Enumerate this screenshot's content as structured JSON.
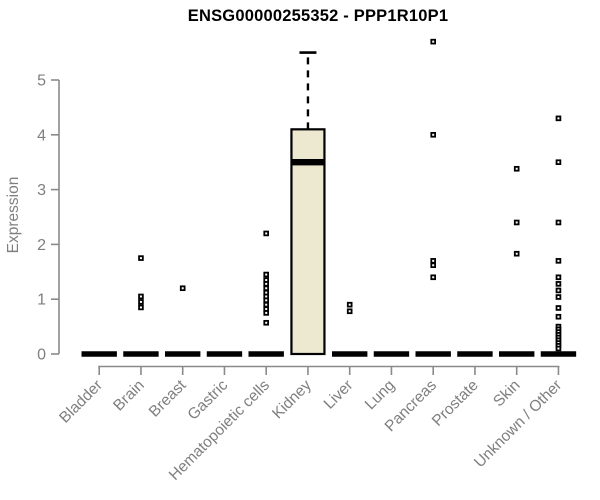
{
  "title": "ENSG00000255352 - PPP1R10P1",
  "chart_data": {
    "type": "boxplot",
    "title": "ENSG00000255352 - PPP1R10P1",
    "xlabel": "",
    "ylabel": "Expression",
    "ylim": [
      0,
      5.8
    ],
    "yticks": [
      0,
      1,
      2,
      3,
      4,
      5
    ],
    "grid": false,
    "legend": false,
    "categories": [
      "Bladder",
      "Brain",
      "Breast",
      "Gastric",
      "Hematopoietic cells",
      "Kidney",
      "Liver",
      "Lung",
      "Pancreas",
      "Prostate",
      "Skin",
      "Unknown / Other"
    ],
    "groups": [
      {
        "label": "Bladder",
        "median": 0,
        "points": []
      },
      {
        "label": "Brain",
        "median": 0,
        "points": [
          1.75,
          1.05,
          0.95,
          0.85
        ]
      },
      {
        "label": "Breast",
        "median": 0,
        "points": [
          1.2
        ]
      },
      {
        "label": "Gastric",
        "median": 0,
        "points": []
      },
      {
        "label": "Hematopoietic cells",
        "median": 0,
        "points": [
          2.2,
          1.45,
          1.35,
          1.28,
          1.2,
          1.12,
          1.05,
          0.98,
          0.9,
          0.82,
          0.75,
          0.57
        ]
      },
      {
        "label": "Kidney",
        "median": 3.5,
        "box": {
          "q1": 0,
          "q3": 4.1,
          "whisker_high": 5.5
        },
        "points": []
      },
      {
        "label": "Liver",
        "median": 0,
        "points": [
          0.9,
          0.78
        ]
      },
      {
        "label": "Lung",
        "median": 0,
        "points": []
      },
      {
        "label": "Pancreas",
        "median": 0,
        "points": [
          5.7,
          4.0,
          1.7,
          1.62,
          1.4
        ]
      },
      {
        "label": "Prostate",
        "median": 0,
        "points": []
      },
      {
        "label": "Skin",
        "median": 0,
        "points": [
          3.38,
          2.4,
          1.83
        ]
      },
      {
        "label": "Unknown / Other",
        "median": 0,
        "points": [
          4.3,
          3.5,
          2.4,
          1.7,
          1.4,
          1.28,
          1.16,
          1.04,
          0.84,
          0.68,
          0.5,
          0.45,
          0.4,
          0.35,
          0.3,
          0.25,
          0.2,
          0.15,
          0.1
        ]
      }
    ],
    "colors": {
      "box_fill": "#EDE8D0",
      "box_border": "#000000",
      "median": "#000000",
      "point": "#000000",
      "axis": "#8a8a8a",
      "tick_label": "#7f7f7f",
      "title": "#000000"
    }
  }
}
